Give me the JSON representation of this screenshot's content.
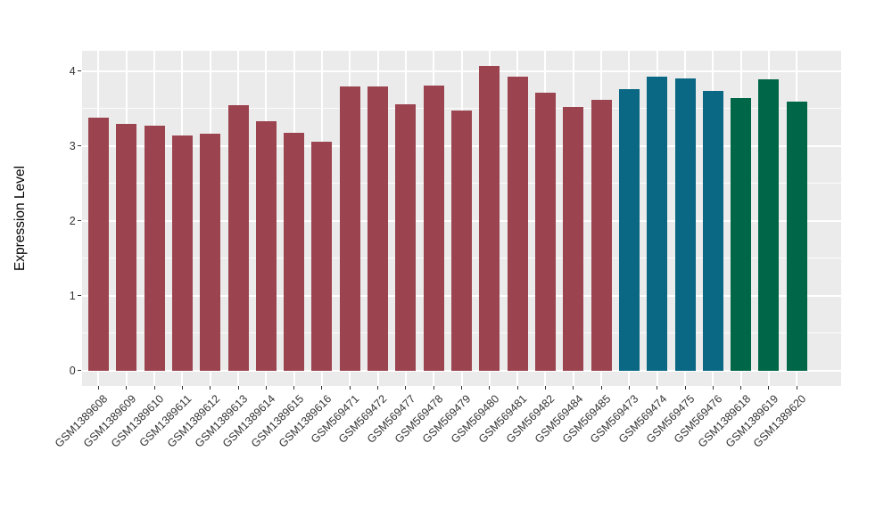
{
  "chart_data": {
    "type": "bar",
    "title": "",
    "xlabel": "",
    "ylabel": "Expression Level",
    "ylim": [
      0,
      4.27
    ],
    "yticks": [
      0,
      1,
      2,
      3,
      4
    ],
    "yminor": [
      0.5,
      1.5,
      2.5,
      3.5
    ],
    "grid": "white major+minor horizontal and major vertical gridlines on gray panel",
    "legend_position": "none",
    "categories": [
      "GSM1389608",
      "GSM1389609",
      "GSM1389610",
      "GSM1389611",
      "GSM1389612",
      "GSM1389613",
      "GSM1389614",
      "GSM1389615",
      "GSM1389616",
      "GSM569471",
      "GSM569472",
      "GSM569477",
      "GSM569478",
      "GSM569479",
      "GSM569480",
      "GSM569481",
      "GSM569482",
      "GSM569484",
      "GSM569485",
      "GSM569473",
      "GSM569474",
      "GSM569475",
      "GSM569476",
      "GSM1389618",
      "GSM1389619",
      "GSM1389620"
    ],
    "values": [
      3.38,
      3.29,
      3.27,
      3.14,
      3.16,
      3.55,
      3.33,
      3.17,
      3.06,
      3.8,
      3.79,
      3.56,
      3.81,
      3.47,
      4.07,
      3.93,
      3.71,
      3.52,
      3.62,
      3.76,
      3.93,
      3.9,
      3.74,
      3.64,
      3.89,
      3.59
    ],
    "bar_groups": [
      "red",
      "red",
      "red",
      "red",
      "red",
      "red",
      "red",
      "red",
      "red",
      "red",
      "red",
      "red",
      "red",
      "red",
      "red",
      "red",
      "red",
      "red",
      "red",
      "teal",
      "teal",
      "teal",
      "teal",
      "green",
      "green",
      "green"
    ],
    "palette": {
      "red": "#9B4450",
      "teal": "#0A6884",
      "green": "#006648"
    },
    "panel_bg": "#EBEBEB",
    "grid_color": "#FFFFFF",
    "axis_text_color": "#333333"
  }
}
